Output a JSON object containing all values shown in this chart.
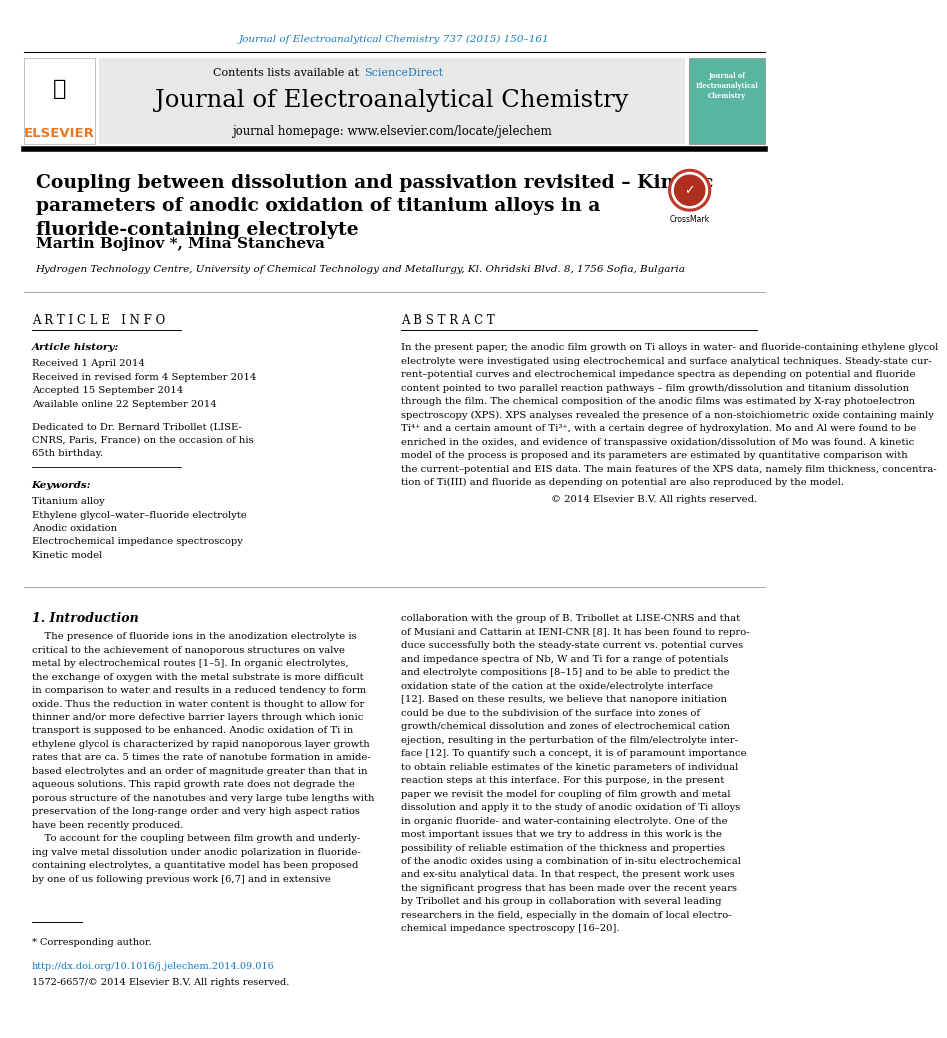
{
  "page_width": 9.92,
  "page_height": 13.23,
  "bg_color": "#ffffff",
  "top_journal_ref": "Journal of Electroanalytical Chemistry 737 (2015) 150–161",
  "top_ref_color": "#1a7bbf",
  "header_bg": "#e8e8e8",
  "header_contents": "Contents lists available at",
  "header_sciencedirect": "ScienceDirect",
  "header_sciencedirect_color": "#1a7bbf",
  "journal_title": "Journal of Electroanalytical Chemistry",
  "journal_homepage": "journal homepage: www.elsevier.com/locate/jelechem",
  "article_title": "Coupling between dissolution and passivation revisited – Kinetic\nparameters of anodic oxidation of titanium alloys in a\nfluoride-containing electrolyte",
  "authors": "Martin Bojinov *, Mina Stancheva",
  "affiliation": "Hydrogen Technology Centre, University of Chemical Technology and Metallurgy, Kl. Ohridski Blvd. 8, 1756 Sofia, Bulgaria",
  "article_info_header": "A R T I C L E   I N F O",
  "abstract_header": "A B S T R A C T",
  "article_history_label": "Article history:",
  "received": "Received 1 April 2014",
  "received_revised": "Received in revised form 4 September 2014",
  "accepted": "Accepted 15 September 2014",
  "available": "Available online 22 September 2014",
  "dedication_lines": [
    "Dedicated to Dr. Bernard Tribollet (LISE-",
    "CNRS, Paris, France) on the occasion of his",
    "65th birthday."
  ],
  "keywords_label": "Keywords:",
  "keywords": [
    "Titanium alloy",
    "Ethylene glycol–water–fluoride electrolyte",
    "Anodic oxidation",
    "Electrochemical impedance spectroscopy",
    "Kinetic model"
  ],
  "abstract_lines": [
    "In the present paper, the anodic film growth on Ti alloys in water- and fluoride-containing ethylene glycol",
    "electrolyte were investigated using electrochemical and surface analytical techniques. Steady-state cur-",
    "rent–potential curves and electrochemical impedance spectra as depending on potential and fluoride",
    "content pointed to two parallel reaction pathways – film growth/dissolution and titanium dissolution",
    "through the film. The chemical composition of the anodic films was estimated by X-ray photoelectron",
    "spectroscopy (XPS). XPS analyses revealed the presence of a non-stoichiometric oxide containing mainly",
    "Ti⁴⁺ and a certain amount of Ti³⁺, with a certain degree of hydroxylation. Mo and Al were found to be",
    "enriched in the oxides, and evidence of transpassive oxidation/dissolution of Mo was found. A kinetic",
    "model of the process is proposed and its parameters are estimated by quantitative comparison with",
    "the current–potential and EIS data. The main features of the XPS data, namely film thickness, concentra-",
    "tion of Ti(III) and fluoride as depending on potential are also reproduced by the model."
  ],
  "copyright": "© 2014 Elsevier B.V. All rights reserved.",
  "intro_header": "1. Introduction",
  "intro_col1_lines": [
    "    The presence of fluoride ions in the anodization electrolyte is",
    "critical to the achievement of nanoporous structures on valve",
    "metal by electrochemical routes [1–5]. In organic electrolytes,",
    "the exchange of oxygen with the metal substrate is more difficult",
    "in comparison to water and results in a reduced tendency to form",
    "oxide. Thus the reduction in water content is thought to allow for",
    "thinner and/or more defective barrier layers through which ionic",
    "transport is supposed to be enhanced. Anodic oxidation of Ti in",
    "ethylene glycol is characterized by rapid nanoporous layer growth",
    "rates that are ca. 5 times the rate of nanotube formation in amide-",
    "based electrolytes and an order of magnitude greater than that in",
    "aqueous solutions. This rapid growth rate does not degrade the",
    "porous structure of the nanotubes and very large tube lengths with",
    "preservation of the long-range order and very high aspect ratios",
    "have been recently produced.",
    "    To account for the coupling between film growth and underly-",
    "ing valve metal dissolution under anodic polarization in fluoride-",
    "containing electrolytes, a quantitative model has been proposed",
    "by one of us following previous work [6,7] and in extensive"
  ],
  "intro_col2_lines": [
    "collaboration with the group of B. Tribollet at LISE-CNRS and that",
    "of Musiani and Cattarin at IENI-CNR [8]. It has been found to repro-",
    "duce successfully both the steady-state current vs. potential curves",
    "and impedance spectra of Nb, W and Ti for a range of potentials",
    "and electrolyte compositions [8–15] and to be able to predict the",
    "oxidation state of the cation at the oxide/electrolyte interface",
    "[12]. Based on these results, we believe that nanopore initiation",
    "could be due to the subdivision of the surface into zones of",
    "growth/chemical dissolution and zones of electrochemical cation",
    "ejection, resulting in the perturbation of the film/electrolyte inter-",
    "face [12]. To quantify such a concept, it is of paramount importance",
    "to obtain reliable estimates of the kinetic parameters of individual",
    "reaction steps at this interface. For this purpose, in the present",
    "paper we revisit the model for coupling of film growth and metal",
    "dissolution and apply it to the study of anodic oxidation of Ti alloys",
    "in organic fluoride- and water-containing electrolyte. One of the",
    "most important issues that we try to address in this work is the",
    "possibility of reliable estimation of the thickness and properties",
    "of the anodic oxides using a combination of in-situ electrochemical",
    "and ex-situ analytical data. In that respect, the present work uses",
    "the significant progress that has been made over the recent years",
    "by Tribollet and his group in collaboration with several leading",
    "researchers in the field, especially in the domain of local electro-",
    "chemical impedance spectroscopy [16–20]."
  ],
  "footnote_star": "* Corresponding author.",
  "doi_link": "http://dx.doi.org/10.1016/j.jelechem.2014.09.016",
  "issn": "1572-6657/© 2014 Elsevier B.V. All rights reserved.",
  "link_color": "#1a7bbf",
  "elsevier_color": "#e87722",
  "cover_bg_color": "#5ab5a0"
}
